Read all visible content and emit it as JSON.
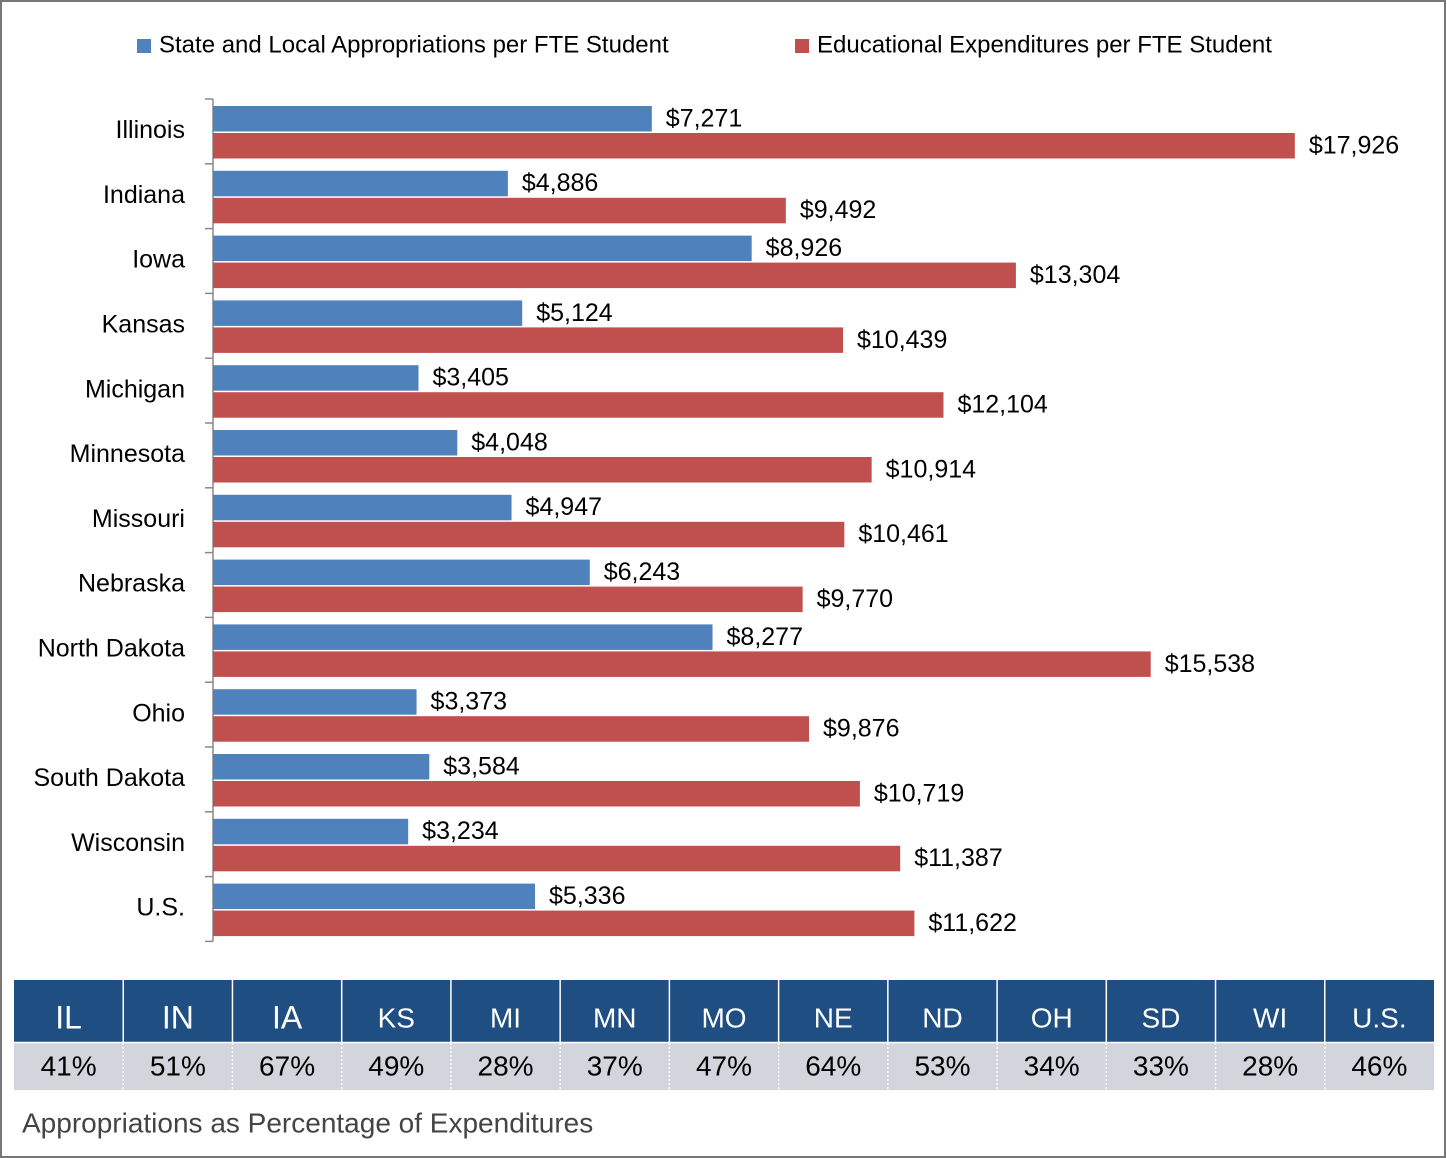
{
  "chart_data": {
    "type": "bar",
    "orientation": "horizontal",
    "categories": [
      "Illinois",
      "Indiana",
      "Iowa",
      "Kansas",
      "Michigan",
      "Minnesota",
      "Missouri",
      "Nebraska",
      "North Dakota",
      "Ohio",
      "South Dakota",
      "Wisconsin",
      "U.S."
    ],
    "series": [
      {
        "name": "State and Local Appropriations per FTE Student",
        "color": "#4f81bd",
        "values": [
          7271,
          4886,
          8926,
          5124,
          3405,
          4048,
          4947,
          6243,
          8277,
          3373,
          3584,
          3234,
          5336
        ],
        "value_labels": [
          "$7,271",
          "$4,886",
          "$8,926",
          "$5,124",
          "$3,405",
          "$4,048",
          "$4,947",
          "$6,243",
          "$8,277",
          "$3,373",
          "$3,584",
          "$3,234",
          "$5,336"
        ]
      },
      {
        "name": "Educational Expenditures per FTE Student",
        "color": "#c0504d",
        "values": [
          17926,
          9492,
          13304,
          10439,
          12104,
          10914,
          10461,
          9770,
          15538,
          9876,
          10719,
          11387,
          11622
        ],
        "value_labels": [
          "$17,926",
          "$9,492",
          "$13,304",
          "$10,439",
          "$12,104",
          "$10,914",
          "$10,461",
          "$9,770",
          "$15,538",
          "$9,876",
          "$10,719",
          "$11,387",
          "$11,622"
        ]
      }
    ],
    "xlim": [
      0,
      20000
    ],
    "legend": "top"
  },
  "table": {
    "columns": [
      "IL",
      "IN",
      "IA",
      "KS",
      "MI",
      "MN",
      "MO",
      "NE",
      "ND",
      "OH",
      "SD",
      "WI",
      "U.S."
    ],
    "values": [
      "41%",
      "51%",
      "67%",
      "49%",
      "28%",
      "37%",
      "47%",
      "64%",
      "53%",
      "34%",
      "33%",
      "28%",
      "46%"
    ],
    "caption": "Appropriations as Percentage of Expenditures"
  }
}
